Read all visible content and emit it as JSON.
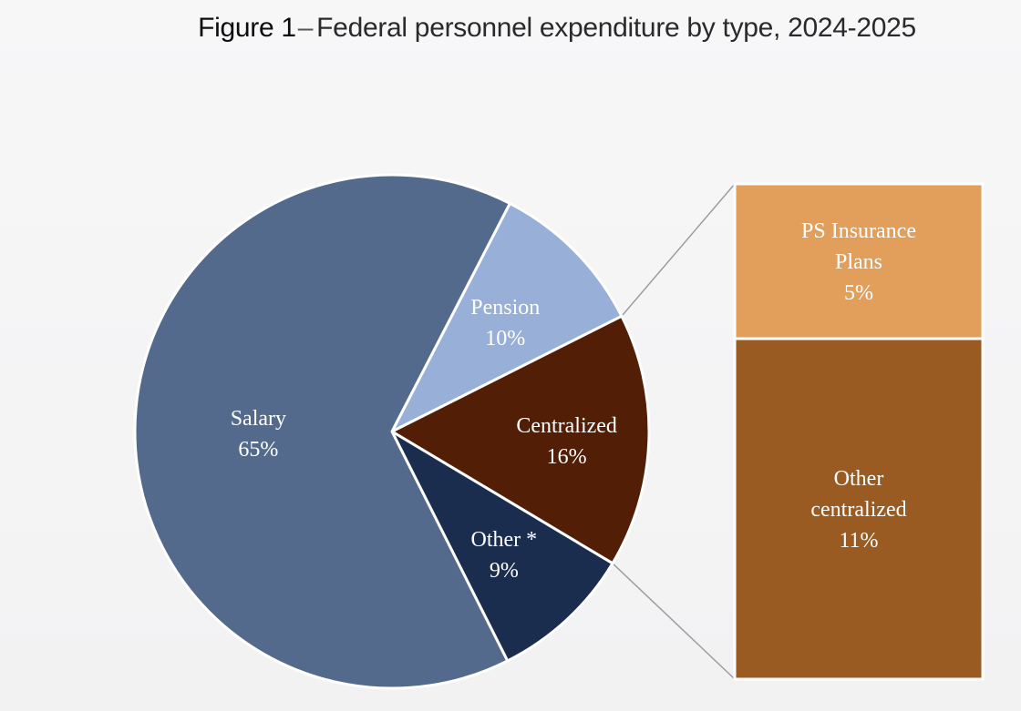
{
  "figure": {
    "number": "Figure 1",
    "dash": "–",
    "title": "Federal personnel expenditure by type, 2024-2025"
  },
  "chart_data": {
    "type": "pie",
    "slices": [
      {
        "label": "Salary",
        "value": 65,
        "display": "65%",
        "color": "#536a8d"
      },
      {
        "label": "Pension",
        "value": 10,
        "display": "10%",
        "color": "#98afd7"
      },
      {
        "label": "Centralized",
        "value": 16,
        "display": "16%",
        "color": "#521f06"
      },
      {
        "label": "Other *",
        "value": 9,
        "display": "9%",
        "color": "#1b2d4e"
      }
    ],
    "breakdown": {
      "of": "Centralized",
      "type": "stacked-bar",
      "segments": [
        {
          "label_lines": [
            "PS Insurance",
            "Plans"
          ],
          "value": 5,
          "display": "5%",
          "color": "#e29f5c"
        },
        {
          "label_lines": [
            "Other",
            "centralized"
          ],
          "value": 11,
          "display": "11%",
          "color": "#9a5b22"
        }
      ]
    },
    "colors": {
      "slice_border": "#ffffff",
      "connector": "#9d9d9d"
    }
  }
}
